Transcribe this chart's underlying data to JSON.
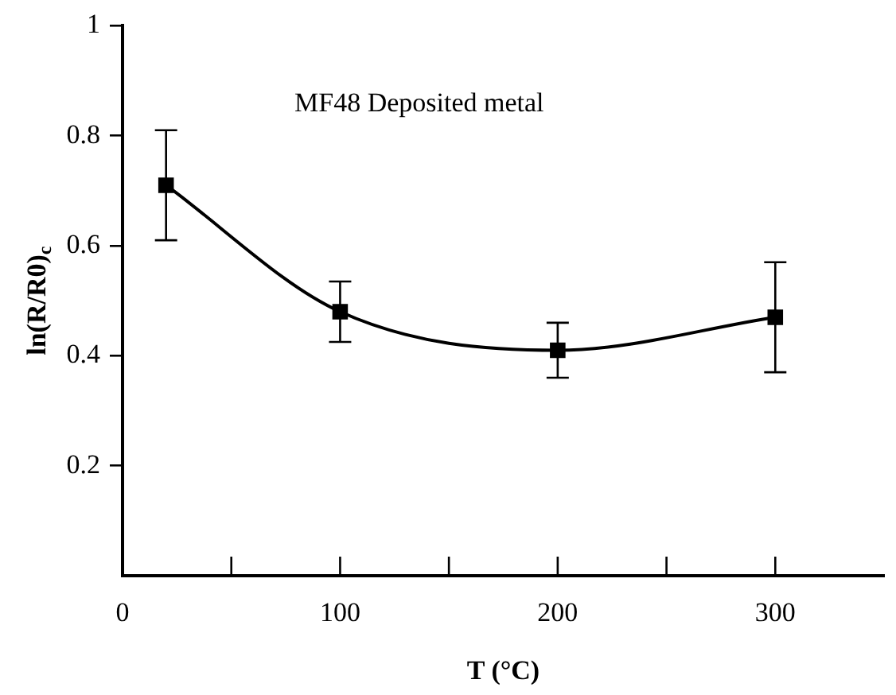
{
  "chart_data": {
    "type": "line",
    "xlabel": "T (°C)",
    "ylabel": "ln(R/R0)$_{c}$",
    "annotations": [
      "MF48 Deposited metal"
    ],
    "x": [
      20,
      100,
      200,
      300
    ],
    "series": [
      {
        "color": "#000000",
        "values": [
          0.71,
          0.48,
          0.41,
          0.47
        ],
        "errors": [
          0.1,
          0.055,
          0.05,
          0.1
        ]
      }
    ],
    "xlim": [
      0,
      350
    ],
    "xticks": [
      0,
      {
        "value": 50,
        "label": null
      },
      100,
      {
        "value": 150,
        "label": null
      },
      200,
      {
        "value": 250,
        "label": null
      },
      300
    ],
    "ylim": [
      0,
      1
    ],
    "yticks": [
      0.2,
      0.4,
      0.6,
      0.8,
      1
    ],
    "marker": "square",
    "line_style": "solid",
    "grid": false,
    "legend": false
  }
}
